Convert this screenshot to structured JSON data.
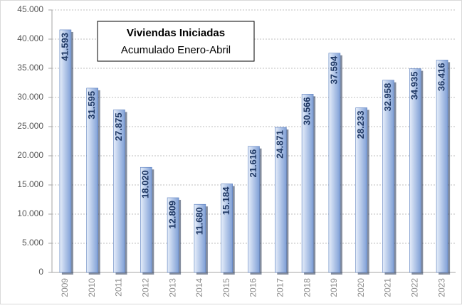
{
  "chart_data": {
    "type": "bar",
    "title": "Viviendas Iniciadas",
    "subtitle": "Acumulado Enero-Abril",
    "categories": [
      "2009",
      "2010",
      "2011",
      "2012",
      "2013",
      "2014",
      "2015",
      "2016",
      "2017",
      "2018",
      "2019",
      "2020",
      "2021",
      "2022",
      "2023"
    ],
    "values": [
      41593,
      31595,
      27875,
      18020,
      12809,
      11680,
      15184,
      21616,
      24871,
      30566,
      37594,
      28233,
      32958,
      34935,
      36416
    ],
    "value_labels": [
      "41.593",
      "31.595",
      "27.875",
      "18.020",
      "12.809",
      "11.680",
      "15.184",
      "21.616",
      "24.871",
      "30.566",
      "37.594",
      "28.233",
      "32.958",
      "34.935",
      "36.416"
    ],
    "color": "#7f9fd6",
    "ylim": [
      0,
      45000
    ],
    "yticks": [
      0,
      {
        "value": 5000,
        "label": "5.000"
      },
      {
        "value": 10000,
        "label": "10.000"
      },
      {
        "value": 15000,
        "label": "15.000"
      },
      {
        "value": 20000,
        "label": "20.000"
      },
      {
        "value": 25000,
        "label": "25.000"
      },
      {
        "value": 30000,
        "label": "30.000"
      },
      {
        "value": 35000,
        "label": "35.000"
      },
      {
        "value": 40000,
        "label": "40.000"
      },
      {
        "value": 45000,
        "label": "45.000"
      }
    ],
    "grid": true
  }
}
